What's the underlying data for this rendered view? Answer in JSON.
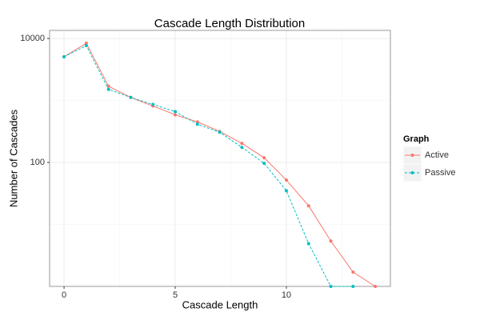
{
  "chart_data": {
    "type": "line",
    "title": "Cascade Length Distribution",
    "x_label": "Cascade Length",
    "y_label": "Number of Cascades",
    "log_y": true,
    "grid": true,
    "legend_title": "Graph",
    "legend_position": "right",
    "xlim": [
      -0.65,
      14.68
    ],
    "xticks": [
      0,
      5,
      10
    ],
    "ylim": [
      1,
      13500
    ],
    "yticks": [
      100,
      10000
    ],
    "series": [
      {
        "name": "Active",
        "color": "#f8766d",
        "linestyle": "solid",
        "x": [
          0,
          1,
          2,
          3,
          4,
          5,
          6,
          7,
          8,
          9,
          10,
          11,
          12,
          13,
          14
        ],
        "values": [
          5070,
          8380,
          1700,
          1120,
          813,
          588,
          451,
          316,
          203,
          119,
          52,
          20,
          5.4,
          1.7,
          1
        ]
      },
      {
        "name": "Passive",
        "color": "#00bfc4",
        "linestyle": "dashed",
        "x": [
          0,
          1,
          2,
          3,
          4,
          5,
          6,
          7,
          8,
          9,
          10,
          11,
          12,
          13
        ],
        "values": [
          5070,
          7670,
          1510,
          1120,
          863,
          661,
          413,
          307,
          175,
          97,
          35,
          4.9,
          1,
          1
        ]
      }
    ]
  }
}
